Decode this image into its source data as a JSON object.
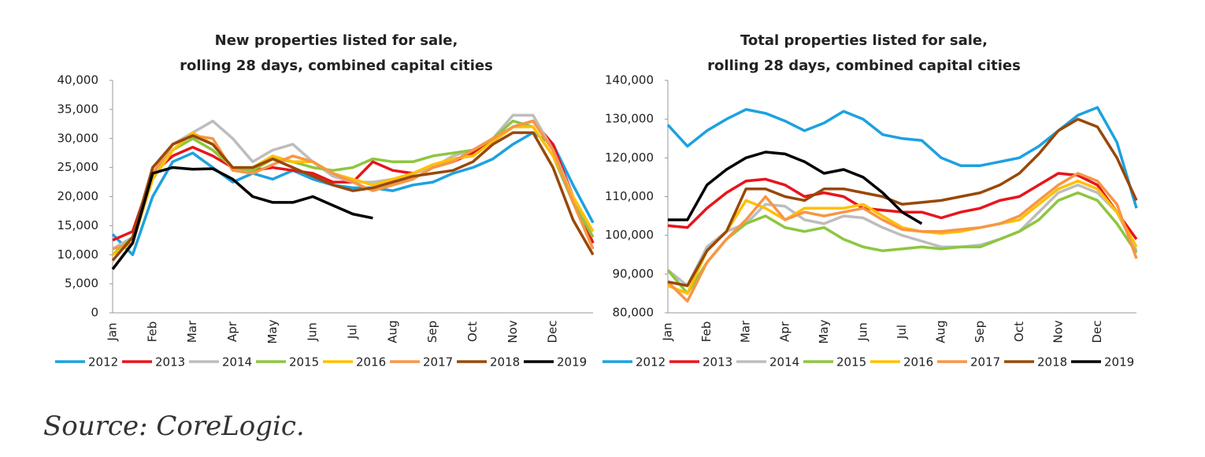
{
  "chart_data": [
    {
      "type": "line",
      "title": [
        "New properties listed for sale,",
        "rolling 28 days, combined capital cities"
      ],
      "categories": [
        "Jan",
        null,
        "Feb",
        null,
        "Mar",
        null,
        "Apr",
        null,
        "May",
        null,
        "Jun",
        null,
        "Jul",
        null,
        "Aug",
        null,
        "Sep",
        null,
        "Oct",
        null,
        "Nov",
        null,
        "Dec",
        null,
        null
      ],
      "ylim": [
        0,
        40000
      ],
      "yticks": [
        0,
        {
          "value": 5000,
          "label": "5,000"
        },
        {
          "value": 10000,
          "label": "10,000"
        },
        {
          "value": 15000,
          "label": "15,000"
        },
        {
          "value": 20000,
          "label": "20,000"
        },
        {
          "value": 25000,
          "label": "25,000"
        },
        {
          "value": 30000,
          "label": "30,000"
        },
        {
          "value": 35000,
          "label": "35,000"
        },
        {
          "value": 40000,
          "label": "40,000"
        }
      ],
      "series": [
        {
          "name": "2012",
          "color": "#1da1e0",
          "values": [
            13500,
            10000,
            20000,
            26000,
            27500,
            25000,
            22500,
            24000,
            23000,
            24500,
            23000,
            22000,
            21500,
            21500,
            21000,
            22000,
            22500,
            24000,
            25000,
            26500,
            29000,
            31000,
            29000,
            22000,
            15500
          ]
        },
        {
          "name": "2013",
          "color": "#e8141c",
          "values": [
            12500,
            14000,
            24000,
            27000,
            28500,
            27000,
            25000,
            24500,
            25000,
            24500,
            24000,
            22500,
            22500,
            26000,
            24500,
            24000,
            25000,
            26000,
            27500,
            29500,
            32000,
            33000,
            29000,
            20000,
            12000
          ]
        },
        {
          "name": "2014",
          "color": "#bdbdbd",
          "values": [
            11000,
            13000,
            23000,
            29000,
            31000,
            33000,
            30000,
            26000,
            28000,
            29000,
            26000,
            23500,
            22500,
            22500,
            23000,
            24000,
            25000,
            27000,
            28000,
            30000,
            34000,
            34000,
            28000,
            20000,
            13000
          ]
        },
        {
          "name": "2015",
          "color": "#8dc63f",
          "values": [
            10000,
            13000,
            23000,
            28000,
            30000,
            28000,
            25000,
            24500,
            26500,
            26000,
            25000,
            24500,
            25000,
            26500,
            26000,
            26000,
            27000,
            27500,
            28000,
            30000,
            33000,
            32000,
            27000,
            19000,
            13000
          ]
        },
        {
          "name": "2016",
          "color": "#ffc000",
          "values": [
            10000,
            12000,
            23000,
            28000,
            31000,
            29000,
            25000,
            25000,
            27000,
            26000,
            26000,
            24000,
            23000,
            22000,
            23000,
            24000,
            25500,
            26500,
            27000,
            29500,
            32000,
            32000,
            27000,
            20000,
            14000
          ]
        },
        {
          "name": "2017",
          "color": "#f79646",
          "values": [
            11000,
            12000,
            24000,
            29000,
            30500,
            30000,
            24500,
            24000,
            25500,
            27000,
            26000,
            24000,
            22500,
            21000,
            22000,
            23000,
            25000,
            26000,
            28000,
            30000,
            32000,
            33000,
            28000,
            19000,
            11000
          ]
        },
        {
          "name": "2018",
          "color": "#984807",
          "values": [
            9000,
            13000,
            25000,
            29000,
            30500,
            29000,
            25000,
            25000,
            26500,
            25000,
            23500,
            22000,
            21000,
            21500,
            22500,
            23500,
            24000,
            24500,
            26000,
            29000,
            31000,
            31000,
            25000,
            16000,
            10000
          ]
        },
        {
          "name": "2019",
          "color": "#000000",
          "values": [
            7500,
            12000,
            24000,
            25000,
            24700,
            24800,
            23000,
            20000,
            19000,
            19000,
            20000,
            18500,
            17000,
            16300,
            null,
            null,
            null,
            null,
            null,
            null,
            null,
            null,
            null,
            null,
            null
          ]
        }
      ]
    },
    {
      "type": "line",
      "title": [
        "Total properties listed for sale,",
        "rolling 28 days, combined capital cities"
      ],
      "categories": [
        "Jan",
        null,
        "Feb",
        null,
        "Mar",
        null,
        "Apr",
        null,
        "May",
        null,
        "Jun",
        null,
        "Jul",
        null,
        "Aug",
        null,
        "Sep",
        null,
        "Oct",
        null,
        "Nov",
        null,
        "Dec",
        null,
        null
      ],
      "ylim": [
        80000,
        140000
      ],
      "yticks": [
        {
          "value": 80000,
          "label": "80,000"
        },
        {
          "value": 90000,
          "label": "90,000"
        },
        {
          "value": 100000,
          "label": "100,000"
        },
        {
          "value": 110000,
          "label": "110,000"
        },
        {
          "value": 120000,
          "label": "120,000"
        },
        {
          "value": 130000,
          "label": "130,000"
        },
        {
          "value": 140000,
          "label": "140,000"
        }
      ],
      "series": [
        {
          "name": "2012",
          "color": "#1da1e0",
          "values": [
            128500,
            123000,
            127000,
            130000,
            132500,
            131500,
            129500,
            127000,
            129000,
            132000,
            130000,
            126000,
            125000,
            124500,
            120000,
            118000,
            118000,
            119000,
            120000,
            123000,
            127000,
            131000,
            133000,
            124000,
            107000
          ]
        },
        {
          "name": "2013",
          "color": "#e8141c",
          "values": [
            102500,
            102000,
            107000,
            111000,
            114000,
            114500,
            113000,
            110000,
            111000,
            110000,
            107000,
            106500,
            106000,
            106000,
            104500,
            106000,
            107000,
            109000,
            110000,
            113000,
            116000,
            115500,
            113000,
            106000,
            99000
          ]
        },
        {
          "name": "2014",
          "color": "#bdbdbd",
          "values": [
            91000,
            87000,
            97000,
            101000,
            103000,
            108000,
            107500,
            104000,
            103000,
            105000,
            104500,
            102000,
            100000,
            98500,
            97000,
            97000,
            97500,
            99000,
            101000,
            106000,
            111000,
            113000,
            111000,
            106000,
            96000
          ]
        },
        {
          "name": "2015",
          "color": "#8dc63f",
          "values": [
            91000,
            85000,
            93000,
            99000,
            103000,
            105000,
            102000,
            101000,
            102000,
            99000,
            97000,
            96000,
            96500,
            97000,
            96500,
            97000,
            97000,
            99000,
            101000,
            104000,
            109000,
            111000,
            109000,
            103000,
            95500
          ]
        },
        {
          "name": "2016",
          "color": "#ffc000",
          "values": [
            87000,
            85000,
            96000,
            101000,
            109000,
            107000,
            104000,
            107000,
            107000,
            107000,
            108000,
            105000,
            102000,
            101000,
            100500,
            101000,
            102000,
            103000,
            104000,
            108000,
            112000,
            114000,
            112000,
            106000,
            97000
          ]
        },
        {
          "name": "2017",
          "color": "#f79646",
          "values": [
            88000,
            83000,
            93000,
            99000,
            104000,
            110000,
            104000,
            106000,
            105000,
            106000,
            107000,
            104000,
            101500,
            101000,
            101000,
            101500,
            102000,
            103000,
            105000,
            109000,
            113000,
            116000,
            114000,
            108000,
            94000
          ]
        },
        {
          "name": "2018",
          "color": "#984807",
          "values": [
            88000,
            87000,
            96000,
            101000,
            112000,
            112000,
            110000,
            109000,
            112000,
            112000,
            111000,
            110000,
            108000,
            108500,
            109000,
            110000,
            111000,
            113000,
            116000,
            121000,
            127000,
            130000,
            128000,
            120000,
            109000
          ]
        },
        {
          "name": "2019",
          "color": "#000000",
          "values": [
            104000,
            104000,
            113000,
            117000,
            120000,
            121500,
            121000,
            119000,
            116000,
            117000,
            115000,
            111000,
            106000,
            103000,
            null,
            null,
            null,
            null,
            null,
            null,
            null,
            null,
            null,
            null,
            null
          ]
        }
      ]
    }
  ],
  "source": "Source: CoreLogic."
}
